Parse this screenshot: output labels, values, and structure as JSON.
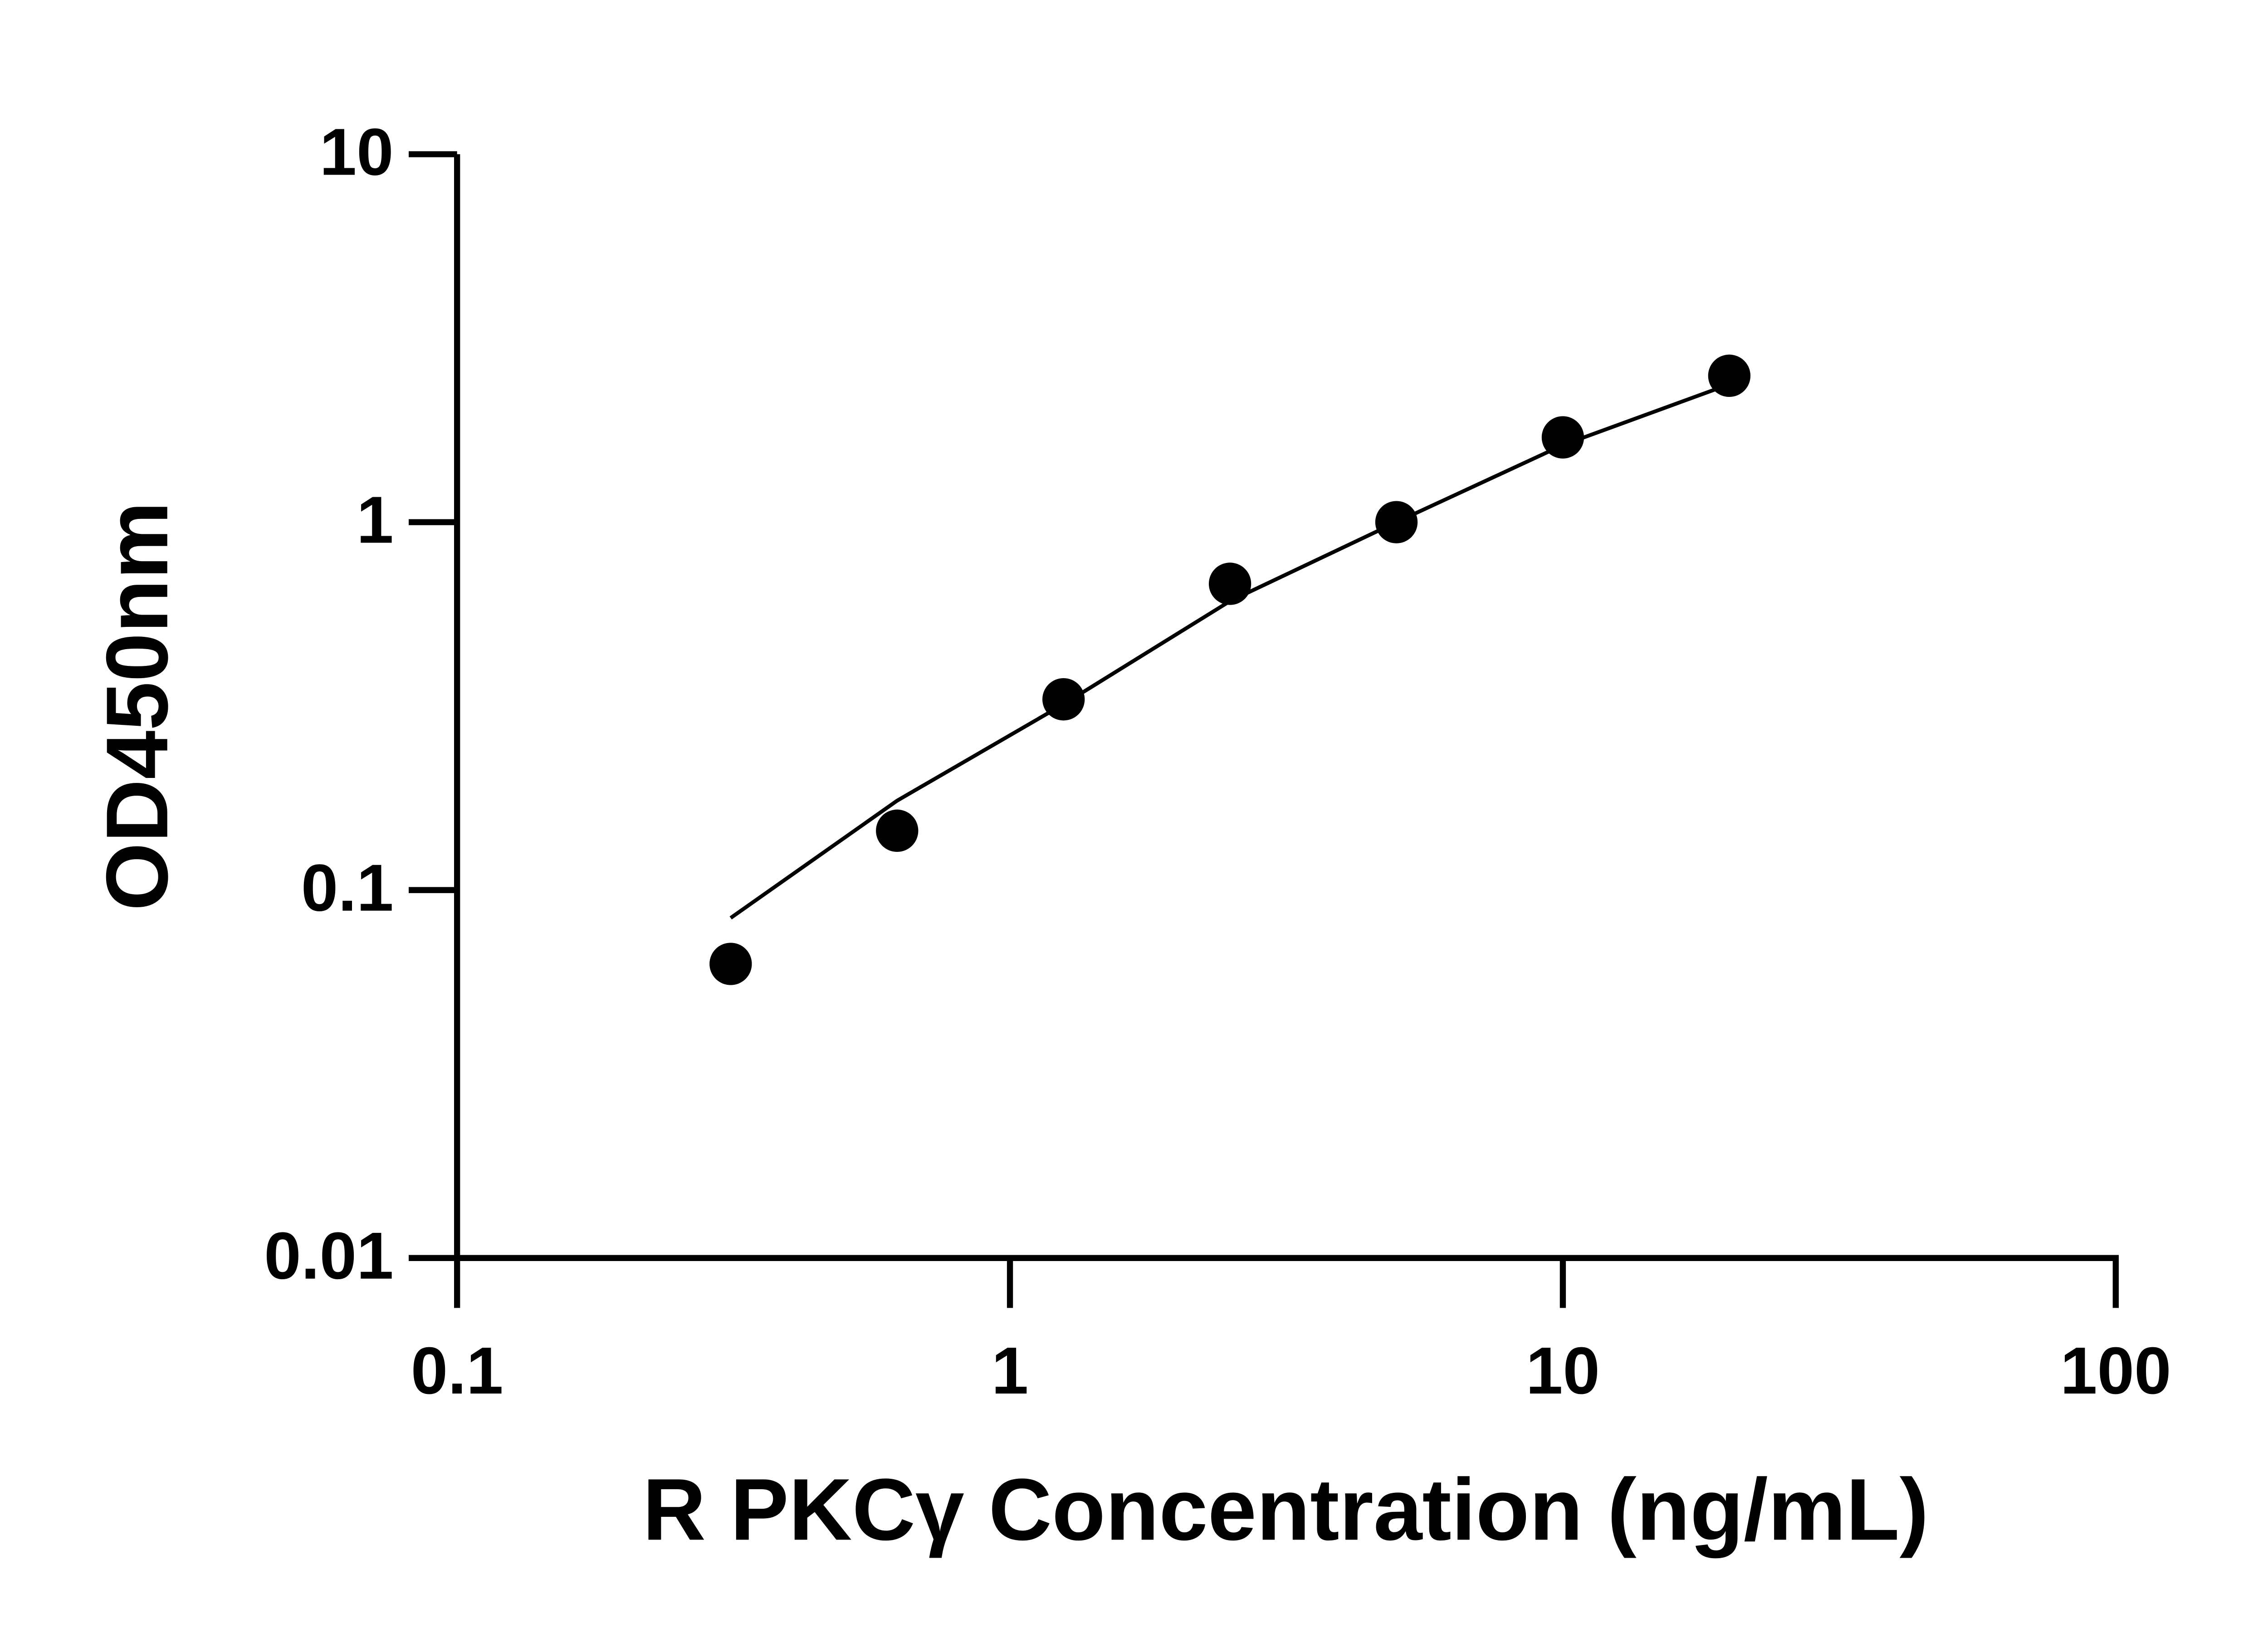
{
  "chart_data": {
    "type": "scatter",
    "xlabel": "R PKCγ Concentration (ng/mL)",
    "ylabel": "OD450nm",
    "x": [
      0.3125,
      0.625,
      1.25,
      2.5,
      5,
      10,
      20
    ],
    "values": [
      0.063,
      0.145,
      0.33,
      0.68,
      1.0,
      1.7,
      2.5
    ],
    "color": "#000000",
    "fit": {
      "x": [
        0.3125,
        0.625,
        1.25,
        2.5,
        5,
        10,
        20
      ],
      "values": [
        0.084,
        0.175,
        0.32,
        0.61,
        1.0,
        1.62,
        2.37
      ]
    },
    "log_x": true,
    "log_y": true,
    "xlim": [
      0.1,
      100
    ],
    "xticks": [
      0.1,
      1,
      10,
      100
    ],
    "ylim": [
      0.01,
      10
    ],
    "yticks": [
      0.01,
      0.1,
      1,
      10
    ]
  }
}
